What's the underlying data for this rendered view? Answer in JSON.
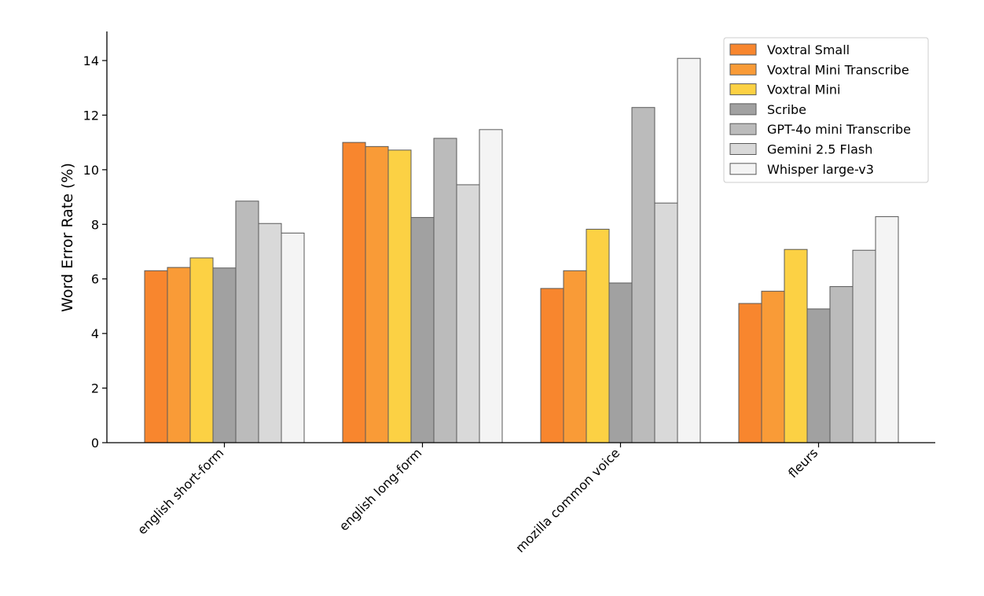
{
  "chart_data": {
    "type": "bar",
    "title": "",
    "xlabel": "",
    "ylabel": "Word Error Rate (%)",
    "ylim": [
      0,
      15
    ],
    "yticks": [
      0,
      2,
      4,
      6,
      8,
      10,
      12,
      14
    ],
    "grid": false,
    "legend_position": "top-right",
    "categories": [
      "english short-form",
      "english long-form",
      "mozilla common voice",
      "fleurs"
    ],
    "series": [
      {
        "name": "Voxtral Small",
        "color": "#F8862E",
        "values": [
          6.3,
          11.0,
          5.65,
          5.1
        ]
      },
      {
        "name": "Voxtral Mini Transcribe",
        "color": "#F99B37",
        "values": [
          6.42,
          10.85,
          6.3,
          5.55
        ]
      },
      {
        "name": "Voxtral Mini",
        "color": "#FCD144",
        "values": [
          6.77,
          10.72,
          7.82,
          7.08
        ]
      },
      {
        "name": "Scribe",
        "color": "#A1A1A1",
        "values": [
          6.4,
          8.25,
          5.85,
          4.9
        ]
      },
      {
        "name": "GPT-4o mini Transcribe",
        "color": "#BBBBBB",
        "values": [
          8.85,
          11.15,
          12.28,
          5.72
        ]
      },
      {
        "name": "Gemini 2.5 Flash",
        "color": "#D9D9D9",
        "values": [
          8.03,
          9.45,
          8.78,
          7.05
        ]
      },
      {
        "name": "Whisper large-v3",
        "color": "#F4F4F4",
        "values": [
          7.68,
          11.47,
          14.08,
          8.28
        ]
      }
    ]
  }
}
